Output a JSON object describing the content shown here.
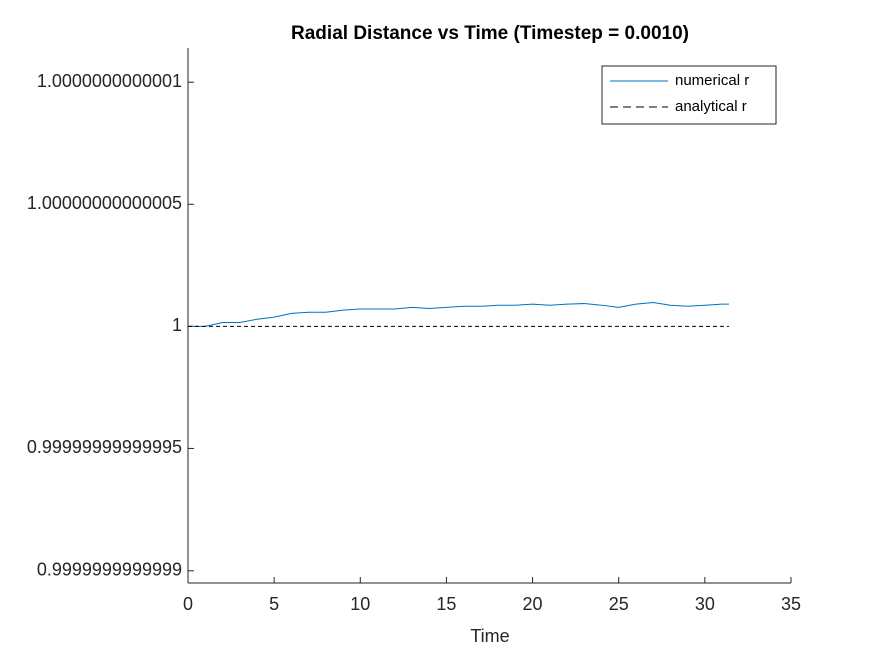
{
  "chart_data": {
    "type": "line",
    "title": "Radial Distance vs Time (Timestep = 0.0010)",
    "x_label": "Time",
    "xlim": [
      0,
      35
    ],
    "xticks": [
      0,
      5,
      10,
      15,
      20,
      25,
      30,
      35
    ],
    "ylim": [
      0.999999999999895,
      1.000000000000114
    ],
    "yticks": [
      0.9999999999999,
      0.99999999999995,
      1,
      1.00000000000005,
      1.0000000000001
    ],
    "legend_position": "upper right",
    "series": [
      {
        "name": "numerical r",
        "color": "#0072bd",
        "dash": "solid",
        "x": [
          0,
          1,
          2,
          3,
          4,
          5,
          6,
          7,
          8,
          9,
          10,
          11,
          12,
          13,
          14,
          15,
          16,
          17,
          18,
          19,
          20,
          21,
          22,
          23,
          24,
          25,
          26,
          27,
          28,
          29,
          30,
          31,
          31.4
        ],
        "values": [
          1,
          1,
          1.0000000000000016,
          1.0000000000000016,
          1.0000000000000029,
          1.0000000000000038,
          1.0000000000000053,
          1.0000000000000058,
          1.0000000000000058,
          1.0000000000000067,
          1.000000000000007,
          1.000000000000007,
          1.000000000000007,
          1.0000000000000078,
          1.0000000000000073,
          1.0000000000000078,
          1.0000000000000082,
          1.0000000000000082,
          1.0000000000000087,
          1.0000000000000087,
          1.000000000000009,
          1.0000000000000087,
          1.000000000000009,
          1.0000000000000093,
          1.0000000000000087,
          1.0000000000000078,
          1.000000000000009,
          1.0000000000000098,
          1.0000000000000087,
          1.0000000000000082,
          1.0000000000000087,
          1.000000000000009,
          1.000000000000009
        ]
      },
      {
        "name": "analytical r",
        "color": "#000000",
        "dash": "dashed",
        "x": [
          0,
          31.4
        ],
        "values": [
          1,
          1
        ]
      }
    ]
  }
}
